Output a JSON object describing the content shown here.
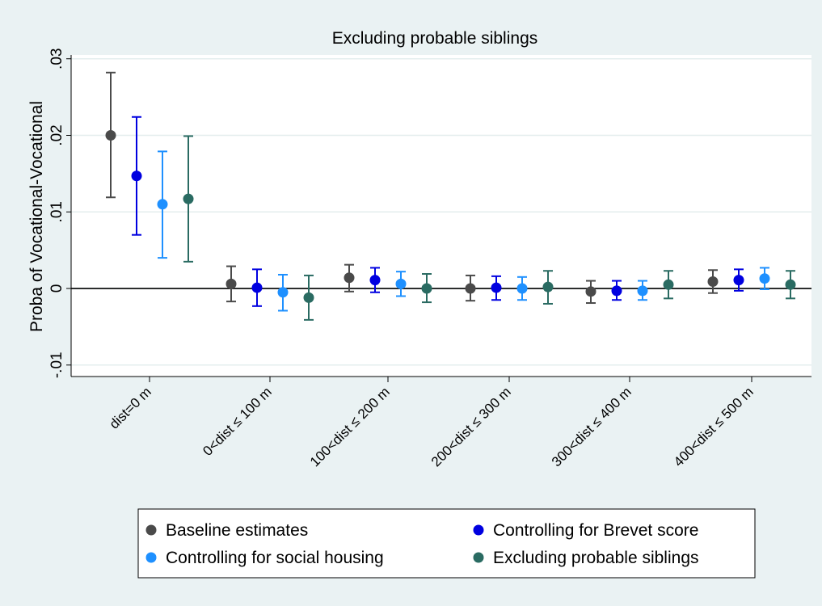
{
  "chart_data": {
    "type": "scatter",
    "subtype": "coefficient-plot-with-confidence-intervals",
    "title": "Excluding probable siblings",
    "ylabel": "Proba of Vocational-Vocational",
    "xlabel": "",
    "ylim": [
      -0.0115,
      0.0305
    ],
    "yticks": [
      -0.01,
      0,
      0.01,
      0.02,
      0.03
    ],
    "ytick_labels": [
      "-.01",
      "0",
      ".01",
      ".02",
      ".03"
    ],
    "grid": true,
    "reference_line_y": 0,
    "categories": [
      "dist=0 m",
      "0<dist ≤ 100 m",
      "100<dist ≤ 200 m",
      "200<dist ≤ 300 m",
      "300<dist ≤ 400 m",
      "400<dist ≤ 500 m"
    ],
    "legend_position": "bottom",
    "series": [
      {
        "name": "Baseline estimates",
        "color": "#4a4a4a",
        "values": [
          0.02,
          0.0006,
          0.0014,
          0.0,
          -0.0004,
          0.0009
        ],
        "ci_low": [
          0.0119,
          -0.0017,
          -0.0004,
          -0.0016,
          -0.0019,
          -0.0006
        ],
        "ci_high": [
          0.0282,
          0.0029,
          0.0031,
          0.0017,
          0.001,
          0.0024
        ]
      },
      {
        "name": "Controlling for Brevet score",
        "color": "#0000e0",
        "values": [
          0.0147,
          0.0001,
          0.0011,
          0.0001,
          -0.0003,
          0.0011
        ],
        "ci_low": [
          0.007,
          -0.0023,
          -0.0005,
          -0.0015,
          -0.0015,
          -0.0003
        ],
        "ci_high": [
          0.0224,
          0.0025,
          0.0027,
          0.0016,
          0.001,
          0.0025
        ]
      },
      {
        "name": "Controlling for social housing",
        "color": "#1e90ff",
        "values": [
          0.011,
          -0.0005,
          0.0006,
          0.0,
          -0.0003,
          0.0013
        ],
        "ci_low": [
          0.004,
          -0.0029,
          -0.001,
          -0.0015,
          -0.0015,
          -0.0001
        ],
        "ci_high": [
          0.0179,
          0.0018,
          0.0022,
          0.0015,
          0.001,
          0.0027
        ]
      },
      {
        "name": "Excluding probable siblings",
        "color": "#2a6b62",
        "values": [
          0.0117,
          -0.0012,
          0.0,
          0.0002,
          0.0005,
          0.0005
        ],
        "ci_low": [
          0.0035,
          -0.0041,
          -0.0018,
          -0.002,
          -0.0013,
          -0.0013
        ],
        "ci_high": [
          0.0199,
          0.0017,
          0.0019,
          0.0023,
          0.0023,
          0.0023
        ]
      }
    ]
  }
}
